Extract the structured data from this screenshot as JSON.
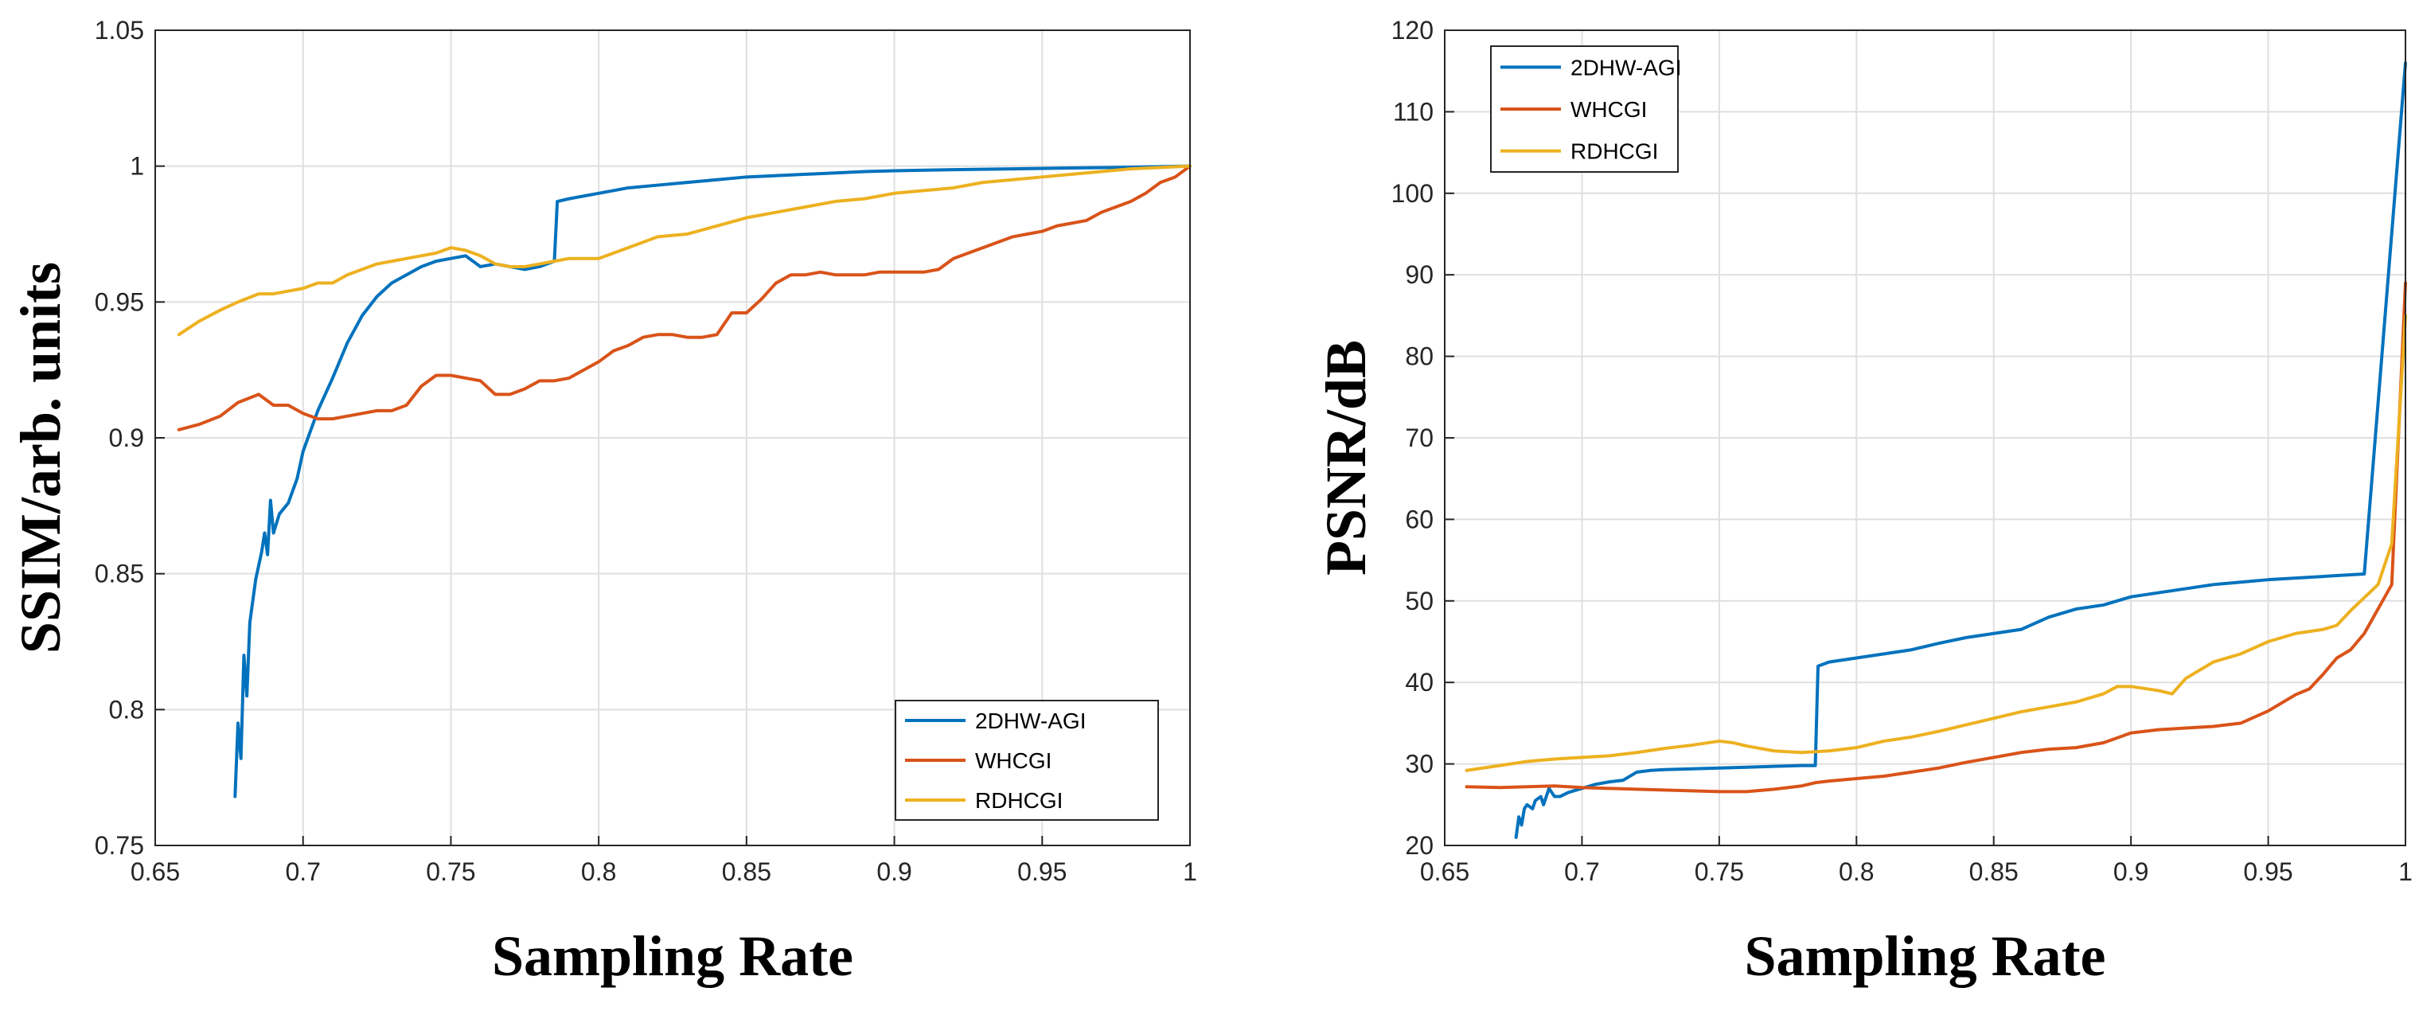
{
  "chart_data": [
    {
      "type": "line",
      "title": "",
      "xlabel": "Sampling Rate",
      "ylabel": "SSIM/arb. units",
      "xlim": [
        0.65,
        1
      ],
      "ylim": [
        0.75,
        1.05
      ],
      "xticks": [
        0.65,
        0.7,
        0.75,
        0.8,
        0.85,
        0.9,
        0.95,
        1
      ],
      "xtick_labels": [
        "0.65",
        "0.7",
        "0.75",
        "0.8",
        "0.85",
        "0.9",
        "0.95",
        "1"
      ],
      "yticks": [
        0.75,
        0.8,
        0.85,
        0.9,
        0.95,
        1,
        1.05
      ],
      "ytick_labels": [
        "0.75",
        "0.8",
        "0.85",
        "0.9",
        "0.95",
        "1",
        "1.05"
      ],
      "grid": true,
      "legend_position": "bottom-right",
      "series": [
        {
          "name": "2DHW-AGI",
          "color": "#0072BD",
          "x": [
            0.677,
            0.678,
            0.679,
            0.68,
            0.681,
            0.682,
            0.684,
            0.686,
            0.687,
            0.688,
            0.689,
            0.69,
            0.692,
            0.695,
            0.698,
            0.7,
            0.705,
            0.71,
            0.715,
            0.72,
            0.725,
            0.73,
            0.735,
            0.74,
            0.745,
            0.75,
            0.755,
            0.76,
            0.765,
            0.77,
            0.775,
            0.78,
            0.785,
            0.786,
            0.79,
            0.8,
            0.81,
            0.82,
            0.83,
            0.84,
            0.85,
            0.86,
            0.87,
            0.88,
            0.89,
            0.9,
            0.92,
            0.94,
            0.96,
            0.98,
            1.0
          ],
          "y": [
            0.768,
            0.795,
            0.782,
            0.82,
            0.805,
            0.832,
            0.848,
            0.858,
            0.865,
            0.857,
            0.877,
            0.865,
            0.872,
            0.876,
            0.885,
            0.895,
            0.91,
            0.922,
            0.935,
            0.945,
            0.952,
            0.957,
            0.96,
            0.963,
            0.965,
            0.966,
            0.967,
            0.963,
            0.964,
            0.963,
            0.962,
            0.963,
            0.965,
            0.987,
            0.988,
            0.99,
            0.992,
            0.993,
            0.994,
            0.995,
            0.996,
            0.9965,
            0.997,
            0.9975,
            0.998,
            0.9983,
            0.9987,
            0.999,
            0.9993,
            0.9996,
            1.0
          ]
        },
        {
          "name": "WHCGI",
          "color": "#D95319",
          "x": [
            0.658,
            0.665,
            0.672,
            0.678,
            0.685,
            0.69,
            0.695,
            0.7,
            0.705,
            0.71,
            0.715,
            0.72,
            0.725,
            0.73,
            0.735,
            0.74,
            0.745,
            0.75,
            0.755,
            0.76,
            0.765,
            0.77,
            0.775,
            0.78,
            0.785,
            0.79,
            0.795,
            0.8,
            0.805,
            0.81,
            0.815,
            0.82,
            0.825,
            0.83,
            0.835,
            0.84,
            0.845,
            0.85,
            0.855,
            0.86,
            0.865,
            0.87,
            0.875,
            0.88,
            0.885,
            0.89,
            0.895,
            0.9,
            0.905,
            0.91,
            0.915,
            0.92,
            0.925,
            0.93,
            0.935,
            0.94,
            0.945,
            0.95,
            0.955,
            0.96,
            0.965,
            0.97,
            0.975,
            0.98,
            0.985,
            0.99,
            0.995,
            1.0
          ],
          "y": [
            0.903,
            0.905,
            0.908,
            0.913,
            0.916,
            0.912,
            0.912,
            0.909,
            0.907,
            0.907,
            0.908,
            0.909,
            0.91,
            0.91,
            0.912,
            0.919,
            0.923,
            0.923,
            0.922,
            0.921,
            0.916,
            0.916,
            0.918,
            0.921,
            0.921,
            0.922,
            0.925,
            0.928,
            0.932,
            0.934,
            0.937,
            0.938,
            0.938,
            0.937,
            0.937,
            0.938,
            0.946,
            0.946,
            0.951,
            0.957,
            0.96,
            0.96,
            0.961,
            0.96,
            0.96,
            0.96,
            0.961,
            0.961,
            0.961,
            0.961,
            0.962,
            0.966,
            0.968,
            0.97,
            0.972,
            0.974,
            0.975,
            0.976,
            0.978,
            0.979,
            0.98,
            0.983,
            0.985,
            0.987,
            0.99,
            0.994,
            0.996,
            1.0
          ]
        },
        {
          "name": "RDHCGI",
          "color": "#EDB120",
          "x": [
            0.658,
            0.665,
            0.672,
            0.678,
            0.685,
            0.69,
            0.695,
            0.7,
            0.705,
            0.71,
            0.715,
            0.72,
            0.725,
            0.73,
            0.735,
            0.74,
            0.745,
            0.75,
            0.755,
            0.76,
            0.765,
            0.77,
            0.775,
            0.78,
            0.785,
            0.79,
            0.795,
            0.8,
            0.81,
            0.82,
            0.83,
            0.84,
            0.85,
            0.86,
            0.87,
            0.88,
            0.89,
            0.9,
            0.91,
            0.92,
            0.93,
            0.94,
            0.95,
            0.96,
            0.97,
            0.98,
            0.99,
            1.0
          ],
          "y": [
            0.938,
            0.943,
            0.947,
            0.95,
            0.953,
            0.953,
            0.954,
            0.955,
            0.957,
            0.957,
            0.96,
            0.962,
            0.964,
            0.965,
            0.966,
            0.967,
            0.968,
            0.97,
            0.969,
            0.967,
            0.964,
            0.963,
            0.963,
            0.964,
            0.965,
            0.966,
            0.966,
            0.966,
            0.97,
            0.974,
            0.975,
            0.978,
            0.981,
            0.983,
            0.985,
            0.987,
            0.988,
            0.99,
            0.991,
            0.992,
            0.994,
            0.995,
            0.996,
            0.997,
            0.998,
            0.999,
            0.9995,
            1.0
          ]
        }
      ]
    },
    {
      "type": "line",
      "title": "",
      "xlabel": "Sampling Rate",
      "ylabel": "PSNR/dB",
      "xlim": [
        0.65,
        1
      ],
      "ylim": [
        20,
        120
      ],
      "xticks": [
        0.65,
        0.7,
        0.75,
        0.8,
        0.85,
        0.9,
        0.95,
        1
      ],
      "xtick_labels": [
        "0.65",
        "0.7",
        "0.75",
        "0.8",
        "0.85",
        "0.9",
        "0.95",
        "1"
      ],
      "yticks": [
        20,
        30,
        40,
        50,
        60,
        70,
        80,
        90,
        100,
        110,
        120
      ],
      "ytick_labels": [
        "20",
        "30",
        "40",
        "50",
        "60",
        "70",
        "80",
        "90",
        "100",
        "110",
        "120"
      ],
      "grid": true,
      "legend_position": "top-left",
      "series": [
        {
          "name": "2DHW-AGI",
          "color": "#0072BD",
          "x": [
            0.676,
            0.677,
            0.678,
            0.679,
            0.68,
            0.682,
            0.683,
            0.685,
            0.686,
            0.688,
            0.69,
            0.692,
            0.695,
            0.7,
            0.705,
            0.71,
            0.715,
            0.72,
            0.725,
            0.73,
            0.74,
            0.75,
            0.76,
            0.77,
            0.78,
            0.785,
            0.786,
            0.79,
            0.8,
            0.81,
            0.82,
            0.83,
            0.84,
            0.85,
            0.86,
            0.87,
            0.875,
            0.88,
            0.89,
            0.9,
            0.91,
            0.92,
            0.93,
            0.94,
            0.95,
            0.96,
            0.97,
            0.98,
            0.985,
            1.0
          ],
          "y": [
            21,
            23.5,
            22.5,
            24.5,
            25,
            24.5,
            25.5,
            26,
            25,
            27,
            26,
            26,
            26.5,
            27,
            27.5,
            27.8,
            28,
            29,
            29.2,
            29.3,
            29.4,
            29.5,
            29.6,
            29.7,
            29.8,
            29.8,
            42,
            42.5,
            43,
            43.5,
            44,
            44.8,
            45.5,
            46,
            46.5,
            48,
            48.5,
            49,
            49.5,
            50.5,
            51,
            51.5,
            52,
            52.3,
            52.6,
            52.8,
            53,
            53.2,
            53.3,
            116
          ]
        },
        {
          "name": "WHCGI",
          "color": "#D95319",
          "x": [
            0.658,
            0.67,
            0.68,
            0.69,
            0.7,
            0.71,
            0.72,
            0.73,
            0.74,
            0.75,
            0.76,
            0.77,
            0.78,
            0.785,
            0.79,
            0.8,
            0.81,
            0.82,
            0.83,
            0.84,
            0.85,
            0.86,
            0.87,
            0.88,
            0.89,
            0.9,
            0.91,
            0.92,
            0.93,
            0.94,
            0.95,
            0.96,
            0.965,
            0.97,
            0.975,
            0.98,
            0.985,
            0.99,
            0.995,
            1.0
          ],
          "y": [
            27.2,
            27.1,
            27.2,
            27.3,
            27.1,
            27,
            26.9,
            26.8,
            26.7,
            26.6,
            26.6,
            26.9,
            27.3,
            27.7,
            27.9,
            28.2,
            28.5,
            29,
            29.5,
            30.2,
            30.8,
            31.4,
            31.8,
            32,
            32.6,
            33.8,
            34.2,
            34.4,
            34.6,
            35,
            36.5,
            38.5,
            39.2,
            41,
            43,
            44,
            46,
            49,
            52,
            89
          ]
        },
        {
          "name": "RDHCGI",
          "color": "#EDB120",
          "x": [
            0.658,
            0.67,
            0.68,
            0.69,
            0.7,
            0.71,
            0.72,
            0.73,
            0.74,
            0.75,
            0.755,
            0.76,
            0.77,
            0.78,
            0.79,
            0.8,
            0.81,
            0.82,
            0.83,
            0.84,
            0.85,
            0.86,
            0.87,
            0.88,
            0.89,
            0.895,
            0.9,
            0.91,
            0.915,
            0.92,
            0.93,
            0.94,
            0.95,
            0.96,
            0.97,
            0.975,
            0.98,
            0.99,
            0.995,
            1.0
          ],
          "y": [
            29.2,
            29.8,
            30.3,
            30.6,
            30.8,
            31,
            31.4,
            31.9,
            32.3,
            32.8,
            32.6,
            32.2,
            31.6,
            31.4,
            31.6,
            32,
            32.8,
            33.3,
            34,
            34.8,
            35.6,
            36.4,
            37,
            37.6,
            38.6,
            39.5,
            39.5,
            39,
            38.6,
            40.5,
            42.5,
            43.5,
            45,
            46,
            46.5,
            47,
            48.8,
            52,
            57,
            85
          ]
        }
      ]
    }
  ]
}
